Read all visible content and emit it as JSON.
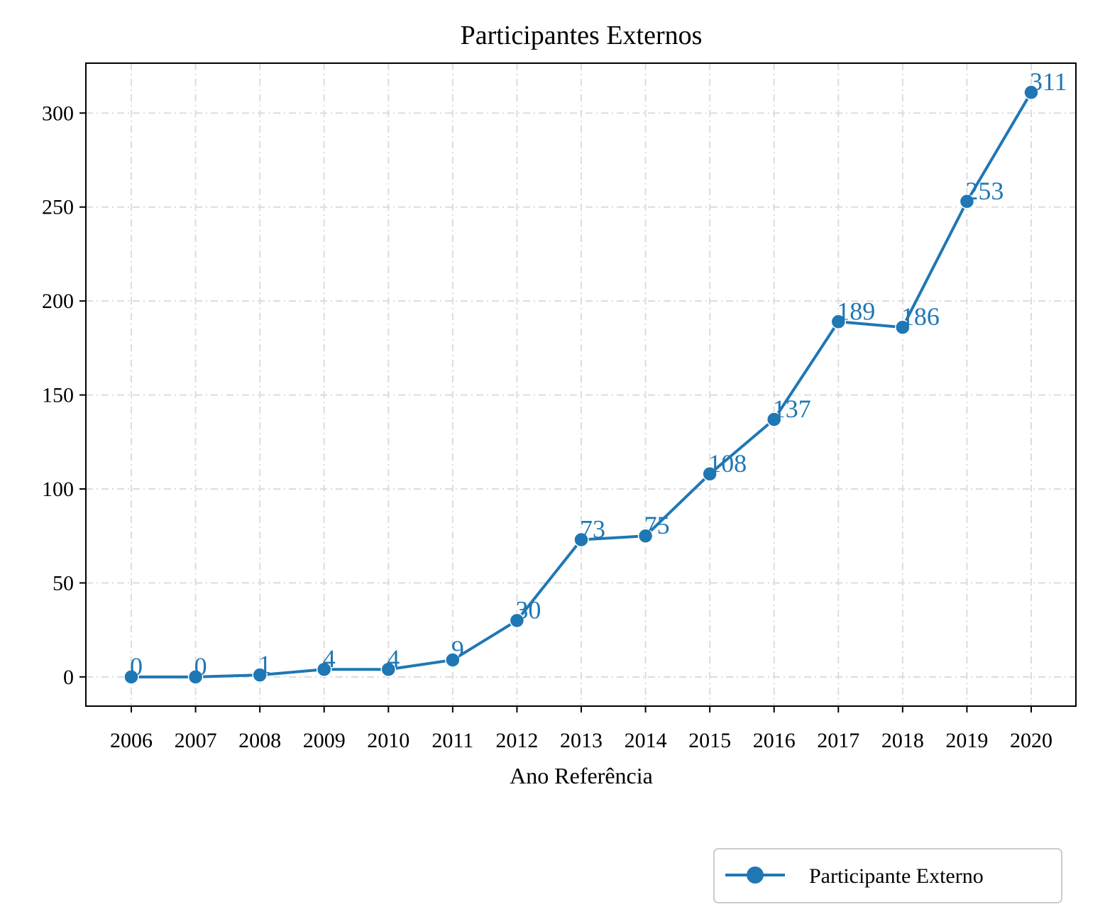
{
  "chart_data": {
    "type": "line",
    "title": "Participantes Externos",
    "xlabel": "Ano Referência",
    "ylabel": "",
    "categories": [
      "2006",
      "2007",
      "2008",
      "2009",
      "2010",
      "2011",
      "2012",
      "2013",
      "2014",
      "2015",
      "2016",
      "2017",
      "2018",
      "2019",
      "2020"
    ],
    "series": [
      {
        "name": "Participante Externo",
        "values": [
          0,
          0,
          1,
          4,
          4,
          9,
          30,
          73,
          75,
          108,
          137,
          189,
          186,
          253,
          311
        ],
        "color": "#1f77b4",
        "marker": "circle"
      }
    ],
    "ylim": [
      -15.55,
      326.55
    ],
    "yticks": [
      0,
      50,
      100,
      150,
      200,
      250,
      300
    ],
    "grid": true,
    "grid_style": "dash-dot",
    "legend_position": "bottom-right outside"
  }
}
